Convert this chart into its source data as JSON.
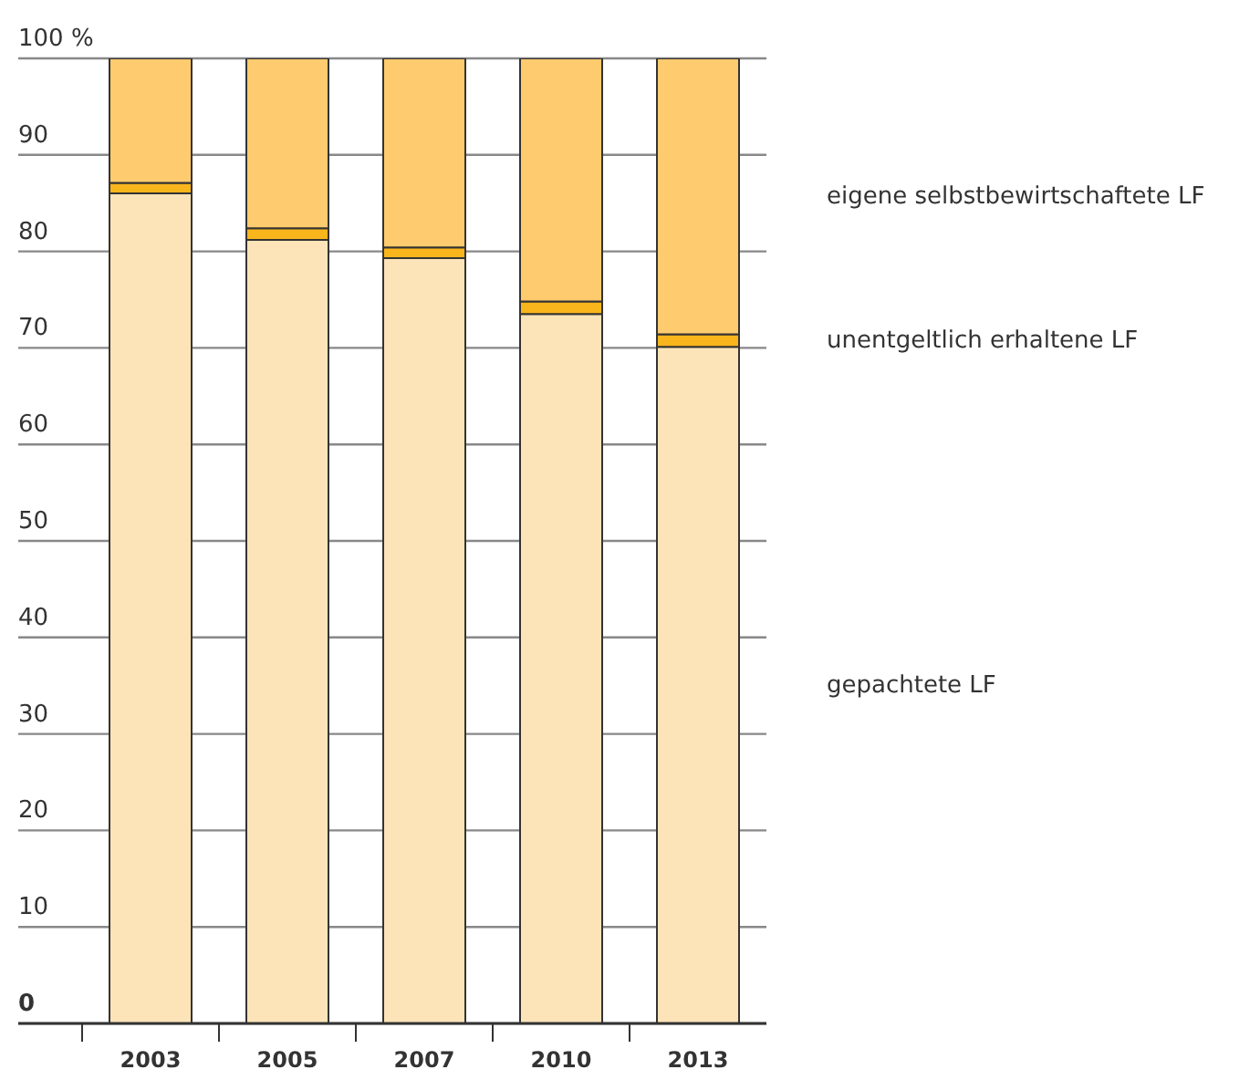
{
  "chart_data": {
    "type": "bar",
    "stacked": true,
    "categories": [
      "2003",
      "2005",
      "2007",
      "2010",
      "2013"
    ],
    "series": [
      {
        "name": "gepachtete LF",
        "color": "#fde4b8",
        "values": [
          86.0,
          81.2,
          79.3,
          73.5,
          70.1
        ]
      },
      {
        "name": "unentgeltlich erhaltene LF",
        "color": "#f9b51c",
        "values": [
          1.1,
          1.2,
          1.1,
          1.3,
          1.3
        ]
      },
      {
        "name": "eigene selbstbewirtschaftete LF",
        "color": "#fecb6e",
        "values": [
          12.9,
          17.6,
          19.6,
          25.2,
          28.6
        ]
      }
    ],
    "ylim": [
      0,
      100
    ],
    "yticks": [
      0,
      10,
      20,
      30,
      40,
      50,
      60,
      70,
      80,
      90,
      {
        "value": 100,
        "label": "100 %"
      }
    ],
    "grid": "y"
  }
}
